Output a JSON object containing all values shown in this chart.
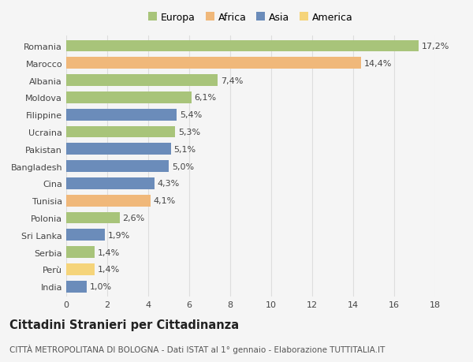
{
  "categories": [
    "Romania",
    "Marocco",
    "Albania",
    "Moldova",
    "Filippine",
    "Ucraina",
    "Pakistan",
    "Bangladesh",
    "Cina",
    "Tunisia",
    "Polonia",
    "Sri Lanka",
    "Serbia",
    "Perù",
    "India"
  ],
  "values": [
    17.2,
    14.4,
    7.4,
    6.1,
    5.4,
    5.3,
    5.1,
    5.0,
    4.3,
    4.1,
    2.6,
    1.9,
    1.4,
    1.4,
    1.0
  ],
  "labels": [
    "17,2%",
    "14,4%",
    "7,4%",
    "6,1%",
    "5,4%",
    "5,3%",
    "5,1%",
    "5,0%",
    "4,3%",
    "4,1%",
    "2,6%",
    "1,9%",
    "1,4%",
    "1,4%",
    "1,0%"
  ],
  "colors": [
    "#a8c47a",
    "#f0b87a",
    "#a8c47a",
    "#a8c47a",
    "#6b8cba",
    "#a8c47a",
    "#6b8cba",
    "#6b8cba",
    "#6b8cba",
    "#f0b87a",
    "#a8c47a",
    "#6b8cba",
    "#a8c47a",
    "#f5d47a",
    "#6b8cba"
  ],
  "legend": [
    {
      "label": "Europa",
      "color": "#a8c47a"
    },
    {
      "label": "Africa",
      "color": "#f0b87a"
    },
    {
      "label": "Asia",
      "color": "#6b8cba"
    },
    {
      "label": "America",
      "color": "#f5d47a"
    }
  ],
  "xlim": [
    0,
    18
  ],
  "xticks": [
    0,
    2,
    4,
    6,
    8,
    10,
    12,
    14,
    16,
    18
  ],
  "title": "Cittadini Stranieri per Cittadinanza",
  "subtitle": "CITTÀ METROPOLITANA DI BOLOGNA - Dati ISTAT al 1° gennaio - Elaborazione TUTTITALIA.IT",
  "background_color": "#f5f5f5",
  "grid_color": "#dddddd",
  "bar_height": 0.68,
  "label_fontsize": 8.0,
  "tick_fontsize": 8.0,
  "title_fontsize": 10.5,
  "subtitle_fontsize": 7.5
}
